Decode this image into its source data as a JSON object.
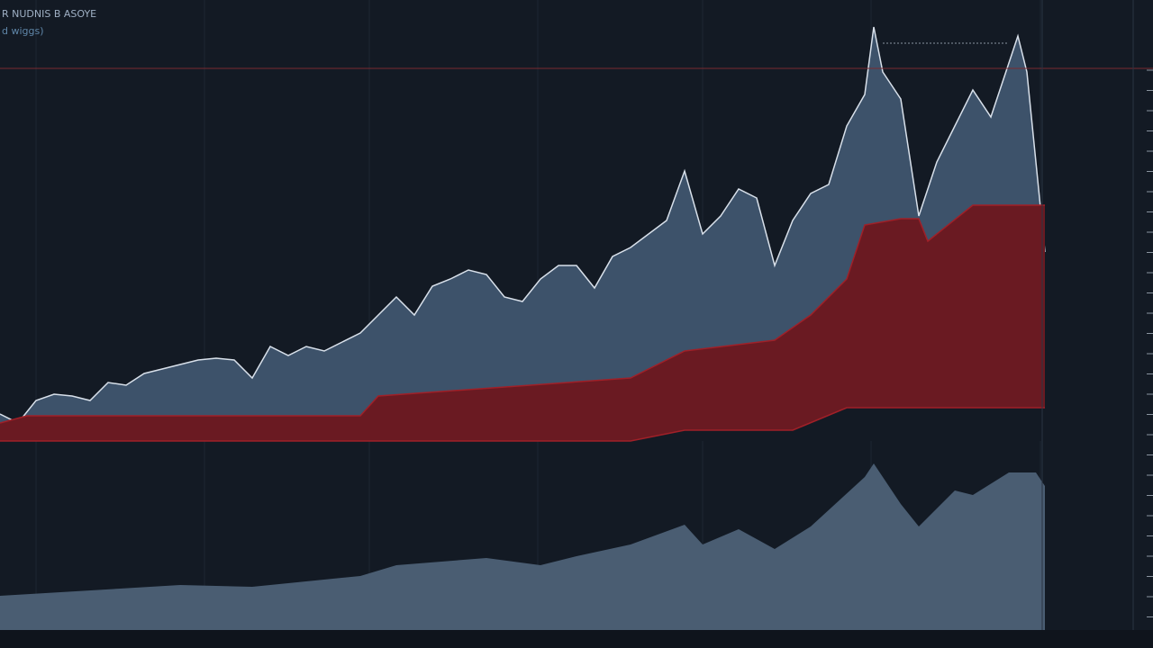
{
  "chart_data": [
    {
      "type": "area",
      "title": "R NUDNIS B ASOYE",
      "subtitle": "d wiggs)",
      "xlim": [
        0,
        1160
      ],
      "ylim": [
        0,
        700
      ],
      "xticks": [
        40,
        227,
        410,
        597,
        780,
        967,
        1155
      ],
      "series": [
        {
          "color": "#3d526a",
          "line_color": "#d8e0ea",
          "x": [
            0,
            20,
            40,
            60,
            80,
            100,
            120,
            140,
            160,
            180,
            200,
            220,
            240,
            260,
            280,
            300,
            320,
            340,
            360,
            380,
            400,
            420,
            440,
            460,
            480,
            500,
            520,
            540,
            560,
            580,
            600,
            620,
            640,
            660,
            680,
            700,
            720,
            740,
            760,
            780,
            800,
            820,
            840,
            860,
            880,
            900,
            920,
            940,
            960,
            970,
            980,
            1000,
            1020,
            1040,
            1060,
            1080,
            1100,
            1120,
            1130,
            1140,
            1160
          ],
          "values": [
            240,
            230,
            255,
            262,
            260,
            255,
            275,
            272,
            285,
            290,
            295,
            300,
            302,
            300,
            280,
            315,
            305,
            315,
            310,
            320,
            330,
            350,
            370,
            350,
            382,
            390,
            400,
            395,
            370,
            365,
            390,
            405,
            405,
            380,
            415,
            425,
            440,
            455,
            510,
            440,
            460,
            490,
            480,
            405,
            455,
            485,
            495,
            560,
            595,
            670,
            620,
            590,
            460,
            520,
            560,
            600,
            570,
            630,
            660,
            620,
            420
          ]
        },
        {
          "color": "#6a1a22",
          "line_color": "#a02028",
          "x": [
            0,
            30,
            400,
            420,
            700,
            760,
            860,
            900,
            940,
            960,
            1000,
            1020,
            1030,
            1080,
            1160
          ],
          "values": [
            230,
            238,
            238,
            260,
            280,
            310,
            322,
            350,
            390,
            450,
            457,
            457,
            432,
            472,
            472
          ]
        },
        {
          "color": "#131a24",
          "line_color": "#a02028",
          "x": [
            0,
            700,
            760,
            880,
            940,
            1160
          ],
          "values": [
            210,
            210,
            222,
            222,
            247,
            247
          ]
        }
      ]
    },
    {
      "type": "area",
      "xlim": [
        0,
        1160
      ],
      "ylim": [
        0,
        700
      ],
      "series": [
        {
          "color": "#4a5d72",
          "x": [
            0,
            200,
            280,
            400,
            440,
            540,
            600,
            640,
            700,
            760,
            780,
            820,
            860,
            900,
            960,
            970,
            1000,
            1020,
            1060,
            1080,
            1120,
            1150,
            1160
          ],
          "values": [
            38,
            50,
            48,
            60,
            72,
            80,
            72,
            82,
            95,
            117,
            95,
            112,
            90,
            115,
            170,
            185,
            140,
            115,
            155,
            150,
            175,
            175,
            160
          ]
        }
      ]
    }
  ]
}
